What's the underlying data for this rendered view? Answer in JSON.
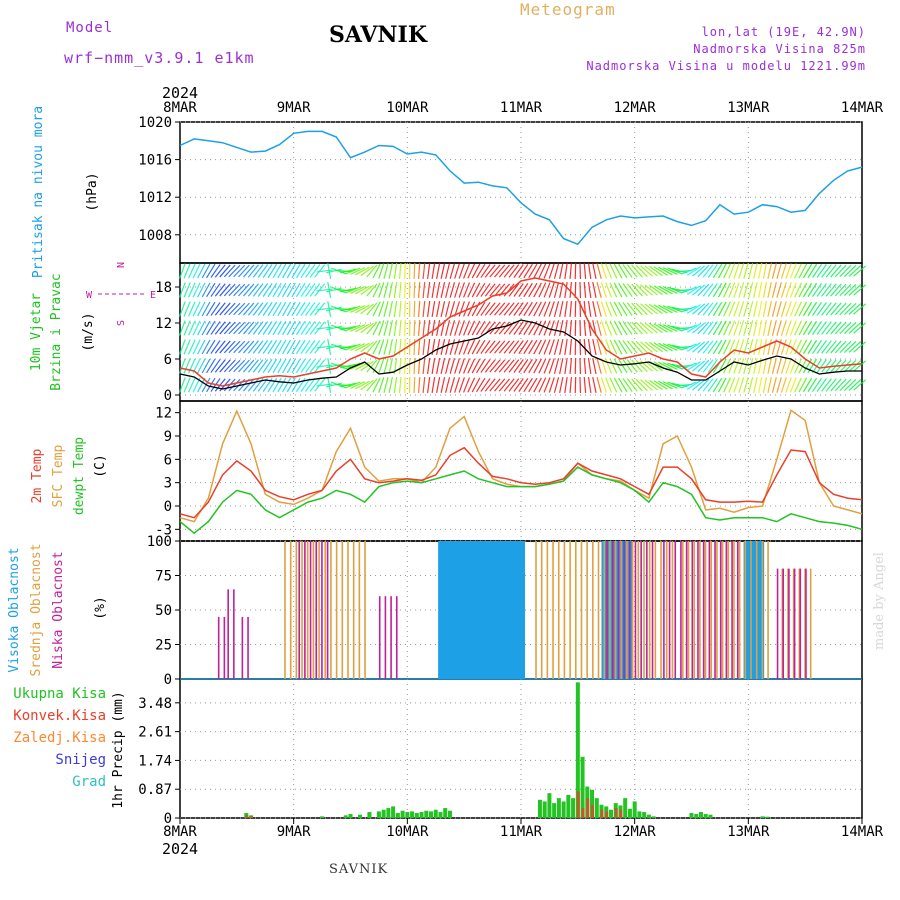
{
  "header": {
    "model_label": "Model",
    "model_name": "wrf−nmm_v3.9.1  e1km",
    "title": "SAVNIK",
    "meteogram": "Meteogram",
    "lonlat": "lon,lat (19E, 42.9N)",
    "altitude": "Nadmorska Visina 825m",
    "model_altitude": "Nadmorska Visina u modelu 1221.99m"
  },
  "footer": {
    "station": "SAVNIK",
    "credit": "made by Angel"
  },
  "colors": {
    "pressure": "#1ea0e6",
    "wind_speed": "#000000",
    "wind_gust": "#e8402a",
    "temp_2m": "#e8402a",
    "temp_sfc": "#e0a040",
    "dewpoint": "#22c322",
    "cloud_high": "#1ea0e6",
    "cloud_mid": "#e0a040",
    "cloud_low": "#c0209a",
    "precip_total": "#22c322",
    "precip_conv": "#e8402a",
    "precip_frozen": "#ff8830",
    "snow": "#3c3cdc",
    "hail": "#30c0c0"
  },
  "chart_data": [
    {
      "type": "line",
      "panel": "pressure",
      "ylabel": [
        "Pritisak na nivou mora",
        "(hPa)"
      ],
      "yticks": [
        1008,
        1012,
        1016,
        1020
      ],
      "ylim": [
        1005,
        1020
      ],
      "x_start": "2024-03-08 00:00",
      "x_labels": [
        "8MAR",
        "9MAR",
        "10MAR",
        "11MAR",
        "12MAR",
        "13MAR",
        "14MAR"
      ],
      "x_top_year": "2024",
      "grid": true,
      "series": [
        {
          "name": "Pritisak",
          "x_hours": [
            0,
            3,
            6,
            9,
            12,
            15,
            18,
            21,
            24,
            27,
            30,
            33,
            36,
            39,
            42,
            45,
            48,
            51,
            54,
            57,
            60,
            63,
            66,
            69,
            72,
            75,
            78,
            81,
            84,
            87,
            90,
            93,
            96,
            99,
            102,
            105,
            108,
            111,
            114,
            117,
            120,
            123,
            126,
            129,
            132,
            135,
            138,
            141,
            144
          ],
          "values": [
            1017.5,
            1018.2,
            1018.0,
            1017.8,
            1017.3,
            1016.8,
            1016.9,
            1017.6,
            1018.8,
            1019.0,
            1019.0,
            1018.4,
            1016.2,
            1016.8,
            1017.5,
            1017.4,
            1016.6,
            1016.8,
            1016.5,
            1014.8,
            1013.5,
            1013.6,
            1013.2,
            1013.0,
            1011.4,
            1010.2,
            1009.6,
            1007.6,
            1007.0,
            1008.8,
            1009.6,
            1010.0,
            1009.8,
            1009.9,
            1010.0,
            1009.4,
            1009.0,
            1009.5,
            1011.2,
            1010.2,
            1010.4,
            1011.2,
            1011.0,
            1010.4,
            1010.6,
            1012.4,
            1013.8,
            1014.8,
            1015.2
          ]
        }
      ]
    },
    {
      "type": "line",
      "panel": "wind",
      "ylabel": [
        "10m Vjetar",
        "Brzina i Pravac",
        "(m/s)"
      ],
      "compass": [
        "N",
        "W",
        "E",
        "S"
      ],
      "yticks": [
        0,
        6,
        12,
        18
      ],
      "ylim": [
        -1,
        22
      ],
      "grid": true,
      "series": [
        {
          "name": "Brzina",
          "x_hours": [
            0,
            3,
            6,
            9,
            12,
            15,
            18,
            21,
            24,
            27,
            30,
            33,
            36,
            39,
            42,
            45,
            48,
            51,
            54,
            57,
            60,
            63,
            66,
            69,
            72,
            75,
            78,
            81,
            84,
            87,
            90,
            93,
            96,
            99,
            102,
            105,
            108,
            111,
            114,
            117,
            120,
            123,
            126,
            129,
            132,
            135,
            138,
            141,
            144
          ],
          "values": [
            3.5,
            3.0,
            1.5,
            1.0,
            1.5,
            2.0,
            2.5,
            2.2,
            2.0,
            2.5,
            2.8,
            3.0,
            4.5,
            5.5,
            3.5,
            3.8,
            5.0,
            6.0,
            7.5,
            8.5,
            9.0,
            9.5,
            11.0,
            11.5,
            12.5,
            12.0,
            11.0,
            10.5,
            9.0,
            6.5,
            5.5,
            5.0,
            5.2,
            5.5,
            4.5,
            3.8,
            2.5,
            2.5,
            4.0,
            5.5,
            5.0,
            5.8,
            6.5,
            6.0,
            4.5,
            3.5,
            3.8,
            4.0,
            4.0
          ]
        },
        {
          "name": "Udari",
          "x_hours": [
            0,
            3,
            6,
            9,
            12,
            15,
            18,
            21,
            24,
            27,
            30,
            33,
            36,
            39,
            42,
            45,
            48,
            51,
            54,
            57,
            60,
            63,
            66,
            69,
            72,
            75,
            78,
            81,
            84,
            87,
            90,
            93,
            96,
            99,
            102,
            105,
            108,
            111,
            114,
            117,
            120,
            123,
            126,
            129,
            132,
            135,
            138,
            141,
            144
          ],
          "values": [
            4.5,
            4.0,
            2.0,
            1.5,
            2.0,
            2.5,
            3.0,
            3.2,
            3.0,
            3.5,
            4.0,
            4.5,
            6.0,
            7.0,
            6.0,
            6.5,
            8.0,
            9.5,
            11.0,
            13.0,
            14.0,
            15.0,
            16.5,
            17.0,
            19.0,
            19.5,
            19.0,
            18.5,
            16.0,
            11.0,
            7.5,
            6.0,
            6.5,
            7.0,
            6.0,
            5.5,
            3.5,
            3.0,
            5.5,
            7.5,
            7.0,
            8.0,
            9.0,
            8.0,
            6.0,
            4.5,
            4.8,
            5.0,
            5.2
          ]
        }
      ],
      "directions_deg": [
        20,
        25,
        30,
        40,
        45,
        40,
        35,
        30,
        30,
        35,
        40,
        300,
        250,
        240,
        200,
        190,
        180,
        185,
        190,
        195,
        200,
        210,
        220,
        220,
        215,
        210,
        200,
        190,
        180,
        170,
        160,
        150,
        140,
        130,
        120,
        110,
        60,
        40,
        30,
        20,
        15,
        10,
        15,
        20,
        30,
        35,
        40,
        45,
        50
      ]
    },
    {
      "type": "line",
      "panel": "temperature",
      "ylabel": [
        "2m Temp",
        "SFC Temp",
        "dewpt Temp",
        "(C)"
      ],
      "yticks": [
        -3,
        0,
        3,
        6,
        9,
        12
      ],
      "ylim": [
        -4.5,
        13.5
      ],
      "grid": true,
      "series": [
        {
          "name": "2m Temp",
          "x_hours": [
            0,
            3,
            6,
            9,
            12,
            15,
            18,
            21,
            24,
            27,
            30,
            33,
            36,
            39,
            42,
            45,
            48,
            51,
            54,
            57,
            60,
            63,
            66,
            69,
            72,
            75,
            78,
            81,
            84,
            87,
            90,
            93,
            96,
            99,
            102,
            105,
            108,
            111,
            114,
            117,
            120,
            123,
            126,
            129,
            132,
            135,
            138,
            141,
            144
          ],
          "values": [
            -1.0,
            -1.5,
            0.5,
            4.0,
            5.8,
            4.5,
            2.0,
            1.2,
            0.8,
            1.5,
            2.0,
            4.5,
            6.0,
            3.5,
            3.0,
            3.2,
            3.5,
            3.3,
            4.0,
            6.5,
            7.5,
            5.5,
            3.8,
            3.5,
            3.0,
            2.8,
            3.0,
            3.5,
            5.5,
            4.5,
            4.0,
            3.5,
            2.5,
            1.5,
            5.0,
            5.0,
            3.5,
            0.8,
            0.5,
            0.5,
            0.6,
            0.5,
            4.0,
            7.2,
            7.0,
            3.0,
            1.5,
            1.0,
            0.8
          ]
        },
        {
          "name": "SFC Temp",
          "x_hours": [
            0,
            3,
            6,
            9,
            12,
            15,
            18,
            21,
            24,
            27,
            30,
            33,
            36,
            39,
            42,
            45,
            48,
            51,
            54,
            57,
            60,
            63,
            66,
            69,
            72,
            75,
            78,
            81,
            84,
            87,
            90,
            93,
            96,
            99,
            102,
            105,
            108,
            111,
            114,
            117,
            120,
            123,
            126,
            129,
            132,
            135,
            138,
            141,
            144
          ],
          "values": [
            -1.5,
            -2.0,
            1.0,
            8.0,
            12.2,
            8.0,
            1.5,
            0.5,
            0.2,
            1.0,
            2.0,
            7.0,
            10.0,
            5.0,
            3.2,
            3.5,
            3.5,
            3.0,
            5.0,
            10.0,
            11.5,
            7.0,
            3.5,
            2.8,
            2.5,
            2.5,
            2.8,
            3.2,
            5.5,
            4.0,
            3.5,
            3.2,
            2.0,
            1.0,
            8.0,
            9.0,
            5.0,
            -0.5,
            -0.3,
            -0.8,
            -0.2,
            0.0,
            6.0,
            12.3,
            11.0,
            3.0,
            0.0,
            -0.5,
            -1.0
          ]
        },
        {
          "name": "dewpt Temp",
          "x_hours": [
            0,
            3,
            6,
            9,
            12,
            15,
            18,
            21,
            24,
            27,
            30,
            33,
            36,
            39,
            42,
            45,
            48,
            51,
            54,
            57,
            60,
            63,
            66,
            69,
            72,
            75,
            78,
            81,
            84,
            87,
            90,
            93,
            96,
            99,
            102,
            105,
            108,
            111,
            114,
            117,
            120,
            123,
            126,
            129,
            132,
            135,
            138,
            141,
            144
          ],
          "values": [
            -2.0,
            -3.5,
            -2.0,
            0.5,
            2.0,
            1.5,
            -0.5,
            -1.5,
            -0.5,
            0.5,
            1.0,
            2.0,
            1.5,
            0.5,
            2.5,
            3.0,
            3.2,
            3.0,
            3.5,
            4.0,
            4.5,
            3.5,
            3.0,
            2.5,
            2.5,
            2.5,
            2.8,
            3.2,
            5.0,
            4.0,
            3.5,
            3.0,
            2.0,
            0.5,
            3.0,
            2.5,
            1.5,
            -1.5,
            -1.8,
            -1.5,
            -1.5,
            -1.5,
            -2.0,
            -1.0,
            -1.5,
            -2.0,
            -2.2,
            -2.5,
            -3.0
          ]
        }
      ]
    },
    {
      "type": "bar",
      "panel": "cloud",
      "ylabel": [
        "Visoka Oblacnost",
        "Srednja Oblacnost",
        "Niska Oblacnost",
        "(%)"
      ],
      "yticks": [
        0,
        25,
        50,
        75,
        100
      ],
      "ylim": [
        0,
        100
      ],
      "grid": true,
      "series": [
        {
          "name": "Visoka Oblacnost",
          "segments": [
            [
              54.5,
              72.5,
              100
            ],
            [
              89,
              95,
              100
            ],
            [
              119,
              123,
              100
            ],
            [
              0,
              144,
              0
            ]
          ]
        },
        {
          "name": "Srednja Oblacnost",
          "segments": [
            [
              22,
              30,
              100
            ],
            [
              30.5,
              40,
              100
            ],
            [
              75,
              105,
              100
            ],
            [
              106,
              125,
              100
            ],
            [
              127,
              134,
              80
            ]
          ]
        },
        {
          "name": "Niska Oblacnost",
          "segments": [
            [
              8,
              10,
              45
            ],
            [
              10,
              12,
              65
            ],
            [
              13,
              15,
              45
            ],
            [
              25,
              32,
              100
            ],
            [
              42,
              46,
              60
            ],
            [
              90,
              100,
              100
            ],
            [
              102,
              118,
              100
            ],
            [
              126,
              132,
              80
            ]
          ]
        }
      ]
    },
    {
      "type": "bar",
      "panel": "precip",
      "ylabel": [
        "1hr Precip (mm)"
      ],
      "legend": [
        "Ukupna  Kisa",
        "Konvek.Kisa",
        "Zaledj.Kisa",
        "Snijeg",
        "Grad"
      ],
      "yticks": [
        0,
        0.87,
        1.74,
        2.61,
        3.48
      ],
      "ylim": [
        0,
        4.2
      ],
      "grid": true,
      "series": [
        {
          "name": "Ukupna  Kisa",
          "x_hours": [
            14,
            15,
            30,
            35,
            36,
            38,
            40,
            42,
            43,
            44,
            45,
            46,
            47,
            48,
            49,
            50,
            51,
            52,
            53,
            54,
            55,
            56,
            57,
            76,
            77,
            78,
            79,
            80,
            81,
            82,
            83,
            84,
            85,
            86,
            87,
            88,
            89,
            90,
            91,
            92,
            93,
            94,
            95,
            96,
            97,
            98,
            99,
            100,
            108,
            109,
            110,
            111,
            112,
            123,
            124
          ],
          "values": [
            0.15,
            0.08,
            0.05,
            0.08,
            0.12,
            0.1,
            0.18,
            0.2,
            0.25,
            0.3,
            0.35,
            0.15,
            0.22,
            0.18,
            0.2,
            0.15,
            0.18,
            0.22,
            0.2,
            0.25,
            0.18,
            0.3,
            0.22,
            0.55,
            0.5,
            0.75,
            0.45,
            0.6,
            0.5,
            0.7,
            0.6,
            4.1,
            1.85,
            0.95,
            0.85,
            0.6,
            0.4,
            0.35,
            0.25,
            0.45,
            0.38,
            0.6,
            0.28,
            0.5,
            0.2,
            0.18,
            0.1,
            0.05,
            0.15,
            0.12,
            0.18,
            0.12,
            0.1,
            0.05,
            0.04
          ]
        },
        {
          "name": "Konvek.Kisa",
          "x_hours": [
            14,
            15,
            84,
            85,
            86,
            87,
            89,
            90,
            92,
            93
          ],
          "values": [
            0.08,
            0.05,
            0.8,
            0.3,
            0.6,
            0.4,
            0.25,
            0.2,
            0.3,
            0.25
          ]
        },
        {
          "name": "Zaledj.Kisa",
          "x_hours": [],
          "values": []
        },
        {
          "name": "Snijeg",
          "x_hours": [],
          "values": []
        },
        {
          "name": "Grad",
          "x_hours": [],
          "values": []
        }
      ]
    }
  ]
}
